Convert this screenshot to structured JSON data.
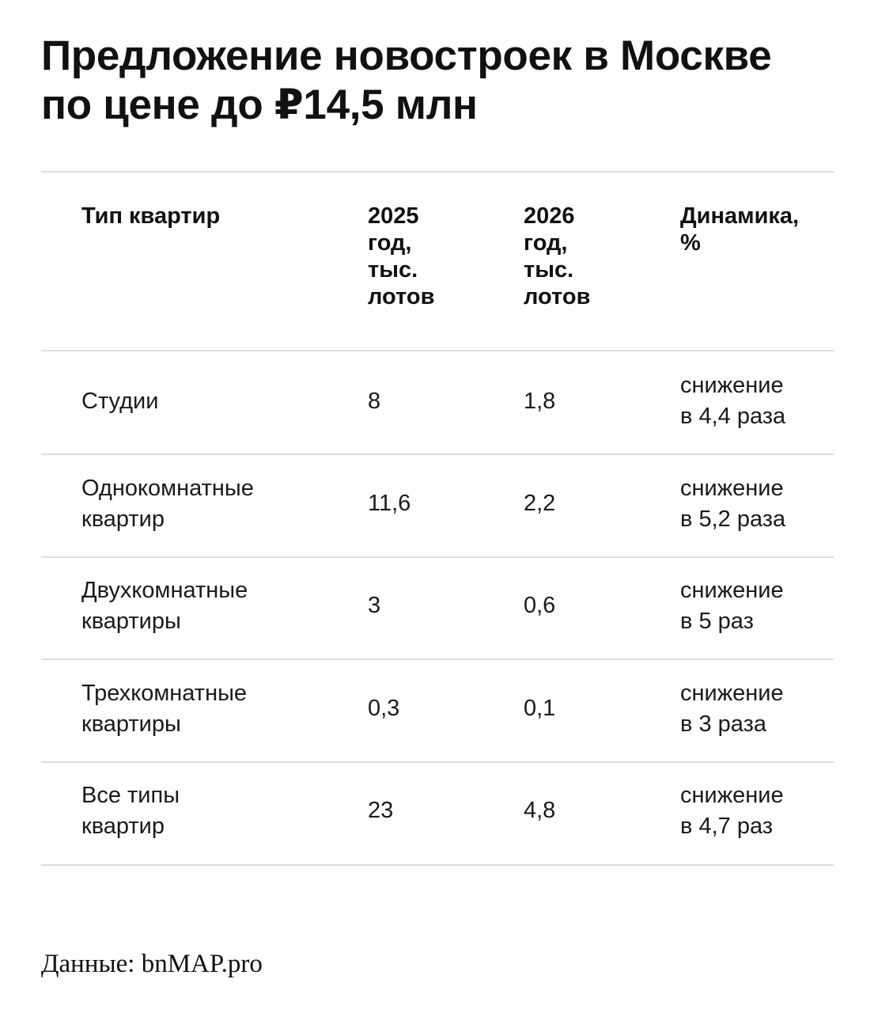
{
  "title": "Предложение новостроек в Москве по цене до ₽14,5 млн",
  "table": {
    "headers": [
      "Тип квартир",
      "2025\nгод,\nтыс.\nлотов",
      "2026\nгод,\nтыс.\nлотов",
      "Динамика,\n%"
    ],
    "rows": [
      [
        "Студии",
        "8",
        "1,8",
        "снижение\nв 4,4 раза"
      ],
      [
        "Однокомнатные\nквартир",
        "11,6",
        "2,2",
        "снижение\nв 5,2 раза"
      ],
      [
        "Двухкомнатные\nквартиры",
        "3",
        "0,6",
        "снижение\nв 5 раз"
      ],
      [
        "Трехкомнатные\nквартиры",
        "0,3",
        "0,1",
        "снижение\nв 3 раза"
      ],
      [
        "Все типы\nквартир",
        "23",
        "4,8",
        "снижение\nв 4,7 раз"
      ]
    ]
  },
  "source": "Данные: bnMAP.pro"
}
